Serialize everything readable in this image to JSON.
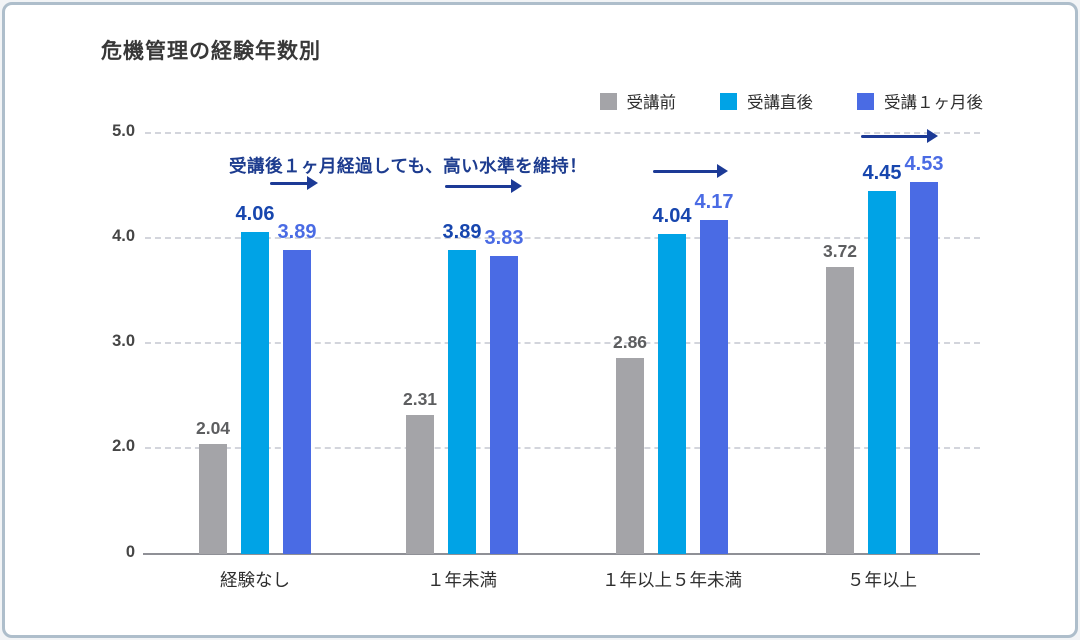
{
  "title": "危機管理の経験年数別",
  "annotation": "受講後１ヶ月経過しても、高い水準を維持！",
  "colors": {
    "bar_before": "#a4a4a8",
    "bar_after": "#00a3e6",
    "bar_month_later": "#4a6be4",
    "annotation_navy": "#1d3c8f",
    "arrow_navy": "#1c3a96",
    "axis_gray": "#8f9096"
  },
  "chart_data": {
    "type": "bar",
    "title": "危機管理の経験年数別",
    "categories": [
      "経験なし",
      "１年未満",
      "１年以上５年未満",
      "５年以上"
    ],
    "series": [
      {
        "name": "受講前",
        "color": "#a4a4a8",
        "label_color": "#5d5e60",
        "values": [
          2.04,
          2.31,
          2.86,
          3.72
        ]
      },
      {
        "name": "受講直後",
        "color": "#00a3e6",
        "label_color": "#1746ae",
        "values": [
          4.06,
          3.89,
          4.04,
          4.45
        ]
      },
      {
        "name": "受講１ヶ月後",
        "color": "#4a6be4",
        "label_color": "#4a6be4",
        "values": [
          3.89,
          3.83,
          4.17,
          4.53
        ]
      }
    ],
    "yticks": [
      {
        "label": "5.0",
        "value": 5
      },
      {
        "label": "4.0",
        "value": 4
      },
      {
        "label": "3.0",
        "value": 3
      },
      {
        "label": "2.0",
        "value": 2
      },
      {
        "label": "0",
        "value": 0
      }
    ],
    "ylim": [
      0,
      5
    ],
    "grid": true,
    "legend_position": "top-right",
    "axis_note": "y axis compressed between 0 and 2.0"
  }
}
